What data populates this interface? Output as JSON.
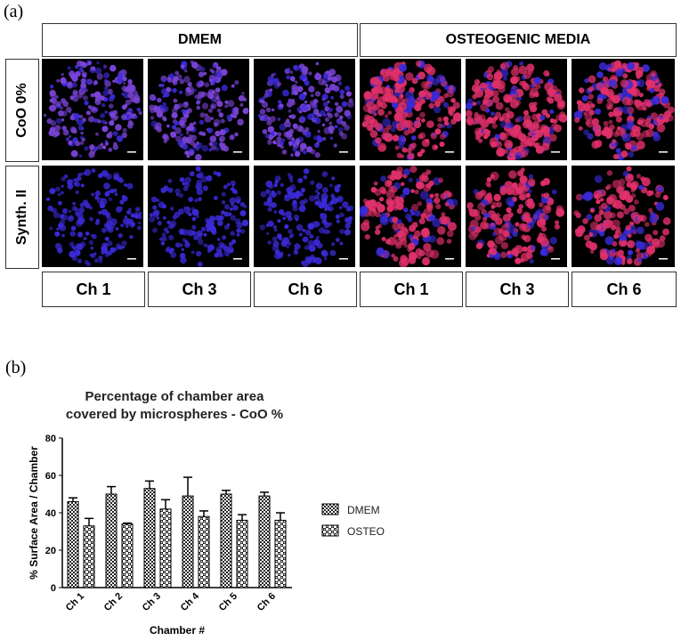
{
  "panel_a": {
    "label": "(a)",
    "column_groups": [
      "DMEM",
      "OSTEOGENIC MEDIA"
    ],
    "row_labels": [
      "CoO 0%",
      "Synth. II"
    ],
    "chamber_labels": [
      "Ch 1",
      "Ch 3",
      "Ch 6",
      "Ch 1",
      "Ch 3",
      "Ch 6"
    ],
    "colors": {
      "background": "#000000",
      "dmem_cells": "#7a44d8",
      "osteo_cells": "#e0306a",
      "nuclei": "#3a2ad8"
    }
  },
  "panel_b": {
    "label": "(b)"
  },
  "chart_data": {
    "type": "bar",
    "title": "Percentage of chamber area covered by microspheres - CoO %",
    "title_lines": [
      "Percentage of chamber area",
      "covered by microspheres - CoO %"
    ],
    "xlabel": "Chamber #",
    "ylabel": "% Surface Area / Chamber",
    "categories": [
      "Ch 1",
      "Ch 2",
      "Ch 3",
      "Ch 4",
      "Ch 5",
      "Ch 6"
    ],
    "ylim": [
      0,
      80
    ],
    "yticks": [
      0,
      20,
      40,
      60,
      80
    ],
    "legend_position": "right",
    "series": [
      {
        "name": "DMEM",
        "values": [
          46,
          50,
          53,
          49,
          50,
          49
        ],
        "errors": [
          2,
          4,
          4,
          10,
          2,
          2
        ],
        "pattern": "checker"
      },
      {
        "name": "OSTEO",
        "values": [
          33,
          34,
          42,
          38,
          36,
          36
        ],
        "errors": [
          4,
          0.5,
          5,
          3,
          3,
          4
        ],
        "pattern": "lattice"
      }
    ]
  }
}
